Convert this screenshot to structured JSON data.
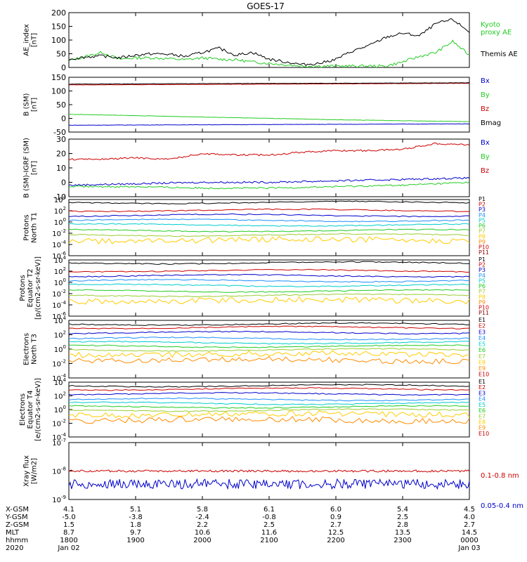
{
  "title": "GOES-17",
  "colors": {
    "black": "#000000",
    "red": "#cc0000",
    "green": "#22cc22",
    "blue": "#0000cc",
    "darkred": "#8b0000"
  },
  "ephemeris": {
    "rows": [
      {
        "label": "X-GSM",
        "values": [
          "4.1",
          "5.1",
          "5.8",
          "6.1",
          "6.0",
          "5.4",
          "4.5"
        ]
      },
      {
        "label": "Y-GSM",
        "values": [
          "-5.0",
          "-3.8",
          "-2.4",
          "-0.8",
          "0.9",
          "2.5",
          "4.0"
        ]
      },
      {
        "label": "Z-GSM",
        "values": [
          "1.5",
          "1.8",
          "2.2",
          "2.5",
          "2.7",
          "2.8",
          "2.7"
        ]
      },
      {
        "label": "MLT",
        "values": [
          "8.7",
          "9.7",
          "10.6",
          "11.6",
          "12.5",
          "13.5",
          "14.5"
        ]
      },
      {
        "label": "hhmm",
        "values": [
          "1800",
          "1900",
          "2000",
          "2100",
          "2200",
          "2300",
          "0000"
        ]
      },
      {
        "label": "2020",
        "values": [
          "Jan 02",
          "",
          "",
          "",
          "",
          "",
          "Jan 03"
        ]
      }
    ]
  },
  "chart_data": [
    {
      "type": "line",
      "ylabel": "AE_index\n[nT]",
      "ylim": [
        0,
        200
      ],
      "yticks": [
        "0",
        "50",
        "100",
        "150",
        "200"
      ],
      "series": [
        {
          "name": "Kyoto\nproxy AE",
          "color": "#22cc22",
          "x": [
            18.0,
            18.25,
            18.5,
            18.75,
            19.0,
            19.25,
            19.5,
            19.75,
            20.0,
            20.25,
            20.5,
            20.75,
            21.0,
            21.25,
            21.5,
            21.75,
            22.0,
            22.25,
            22.5,
            22.75,
            23.0,
            23.25,
            23.5,
            23.75,
            24.0
          ],
          "values": [
            25,
            40,
            55,
            30,
            35,
            35,
            32,
            28,
            35,
            30,
            28,
            20,
            15,
            10,
            5,
            5,
            5,
            5,
            5,
            5,
            20,
            40,
            55,
            95,
            45
          ]
        },
        {
          "name": "Themis AE",
          "color": "#000000",
          "x": [
            18.0,
            18.25,
            18.5,
            18.75,
            19.0,
            19.25,
            19.5,
            19.75,
            20.0,
            20.25,
            20.5,
            20.75,
            21.0,
            21.25,
            21.5,
            21.75,
            22.0,
            22.25,
            22.5,
            22.75,
            23.0,
            23.25,
            23.5,
            23.75,
            24.0
          ],
          "values": [
            30,
            38,
            42,
            35,
            45,
            50,
            48,
            40,
            55,
            70,
            45,
            55,
            30,
            20,
            10,
            15,
            30,
            60,
            80,
            110,
            125,
            115,
            160,
            175,
            130
          ]
        }
      ]
    },
    {
      "type": "line",
      "ylabel": "B (SM)\n[nT]",
      "ylim": [
        -50,
        150
      ],
      "yticks": [
        "-50",
        "0",
        "50",
        "100",
        "150"
      ],
      "series": [
        {
          "name": "Bx",
          "color": "#0000cc",
          "x": [
            18,
            24
          ],
          "values": [
            -25,
            -20
          ]
        },
        {
          "name": "By",
          "color": "#22cc22",
          "x": [
            18,
            20,
            22,
            24
          ],
          "values": [
            15,
            5,
            -5,
            -12
          ]
        },
        {
          "name": "Bz",
          "color": "#cc0000",
          "x": [
            18,
            20,
            22,
            24
          ],
          "values": [
            122,
            124,
            126,
            128
          ]
        },
        {
          "name": "Bmag",
          "color": "#000000",
          "x": [
            18,
            20,
            22,
            24
          ],
          "values": [
            125,
            127,
            128,
            130
          ]
        }
      ]
    },
    {
      "type": "line",
      "ylabel": "B (SM)-IGRF (SM)\n[nT]",
      "ylim": [
        -10,
        30
      ],
      "yticks": [
        "-10",
        "0",
        "10",
        "20",
        "30"
      ],
      "series": [
        {
          "name": "Bx",
          "color": "#0000cc",
          "x": [
            18,
            19,
            20,
            21,
            22,
            23,
            24
          ],
          "values": [
            -2,
            -1,
            0,
            0,
            1,
            2,
            3
          ]
        },
        {
          "name": "By",
          "color": "#22cc22",
          "x": [
            18,
            19,
            20,
            21,
            22,
            23,
            24
          ],
          "values": [
            -3,
            -3,
            -4,
            -4,
            -3,
            -2,
            0
          ]
        },
        {
          "name": "Bz",
          "color": "#cc0000",
          "x": [
            18,
            18.5,
            19,
            19.5,
            20,
            20.5,
            21,
            21.5,
            22,
            22.5,
            23,
            23.5,
            24
          ],
          "values": [
            16,
            16,
            17,
            16,
            20,
            19,
            19,
            21,
            22,
            22,
            23,
            27,
            26
          ]
        }
      ]
    },
    {
      "type": "line",
      "ylog": true,
      "ylabel": "Protons\nNorth T1",
      "ylim": [
        "1e-6",
        "1e4"
      ],
      "yticks": [
        "10^4",
        "10^2",
        "10^0",
        "10^-2",
        "10^-4",
        "10^-6"
      ],
      "channels": [
        "P1",
        "P2",
        "P3",
        "P4",
        "P5",
        "P6",
        "P7",
        "P8",
        "P9",
        "P10",
        "P11"
      ],
      "values": [
        3000.0,
        120.0,
        15.0,
        2.0,
        0.3,
        0.03,
        0.005,
        0.0006,
        null,
        null,
        null
      ]
    },
    {
      "type": "line",
      "ylog": true,
      "ylabel": "Protons\nEquator T2\n[p/(cm2-s-sr-keV)]",
      "ylim": [
        "1e-6",
        "1e4"
      ],
      "yticks": [
        "10^4",
        "10^2",
        "10^0",
        "10^-2",
        "10^-4",
        "10^-6"
      ],
      "channels": [
        "P1",
        "P2",
        "P3",
        "P4",
        "P5",
        "P6",
        "P7",
        "P8",
        "P9",
        "P10",
        "P11"
      ],
      "values": [
        3000.0,
        120.0,
        15.0,
        2.0,
        0.3,
        0.03,
        0.005,
        0.0006,
        null,
        null,
        null
      ]
    },
    {
      "type": "line",
      "ylog": true,
      "ylabel": "Electrons\nNorth T3",
      "ylim": [
        "1e-4",
        "1e4"
      ],
      "yticks": [
        "10^4",
        "10^2",
        "10^0",
        "10^-2",
        "10^-4"
      ],
      "channels": [
        "E1",
        "E2",
        "E3",
        "E4",
        "E5",
        "E6",
        "E7",
        "E8",
        "E9",
        "E10"
      ],
      "values": [
        3000.0,
        1000.0,
        200.0,
        30.0,
        8.0,
        2.5,
        0.8,
        0.2,
        0.03,
        null
      ]
    },
    {
      "type": "line",
      "ylog": true,
      "ylabel": "Electrons\nEquator T4\n[e/(cm2-s-sr-keV)]",
      "ylim": [
        "1e-4",
        "1e4"
      ],
      "yticks": [
        "10^4",
        "10^2",
        "10^0",
        "10^-2",
        "10^-4"
      ],
      "channels": [
        "E1",
        "E2",
        "E3",
        "E4",
        "E5",
        "E6",
        "E7",
        "E8",
        "E9",
        "E10"
      ],
      "values": [
        3000.0,
        1000.0,
        200.0,
        30.0,
        8.0,
        2.5,
        0.8,
        0.2,
        0.03,
        null
      ]
    },
    {
      "type": "line",
      "ylog": true,
      "ylabel": "Xray flux\n[W/m2]",
      "ylim": [
        "1e-9",
        "1e-7"
      ],
      "yticks": [
        "10^-7",
        "10^-8",
        "10^-9"
      ],
      "series": [
        {
          "name": "0.1-0.8 nm",
          "color": "#cc0000",
          "level": 1e-08
        },
        {
          "name": "0.05-0.4 nm",
          "color": "#0000cc",
          "level": 3.5e-09
        }
      ]
    }
  ],
  "xaxis": {
    "range": [
      18,
      24
    ],
    "ticks": [
      18,
      19,
      20,
      21,
      22,
      23,
      24
    ]
  }
}
